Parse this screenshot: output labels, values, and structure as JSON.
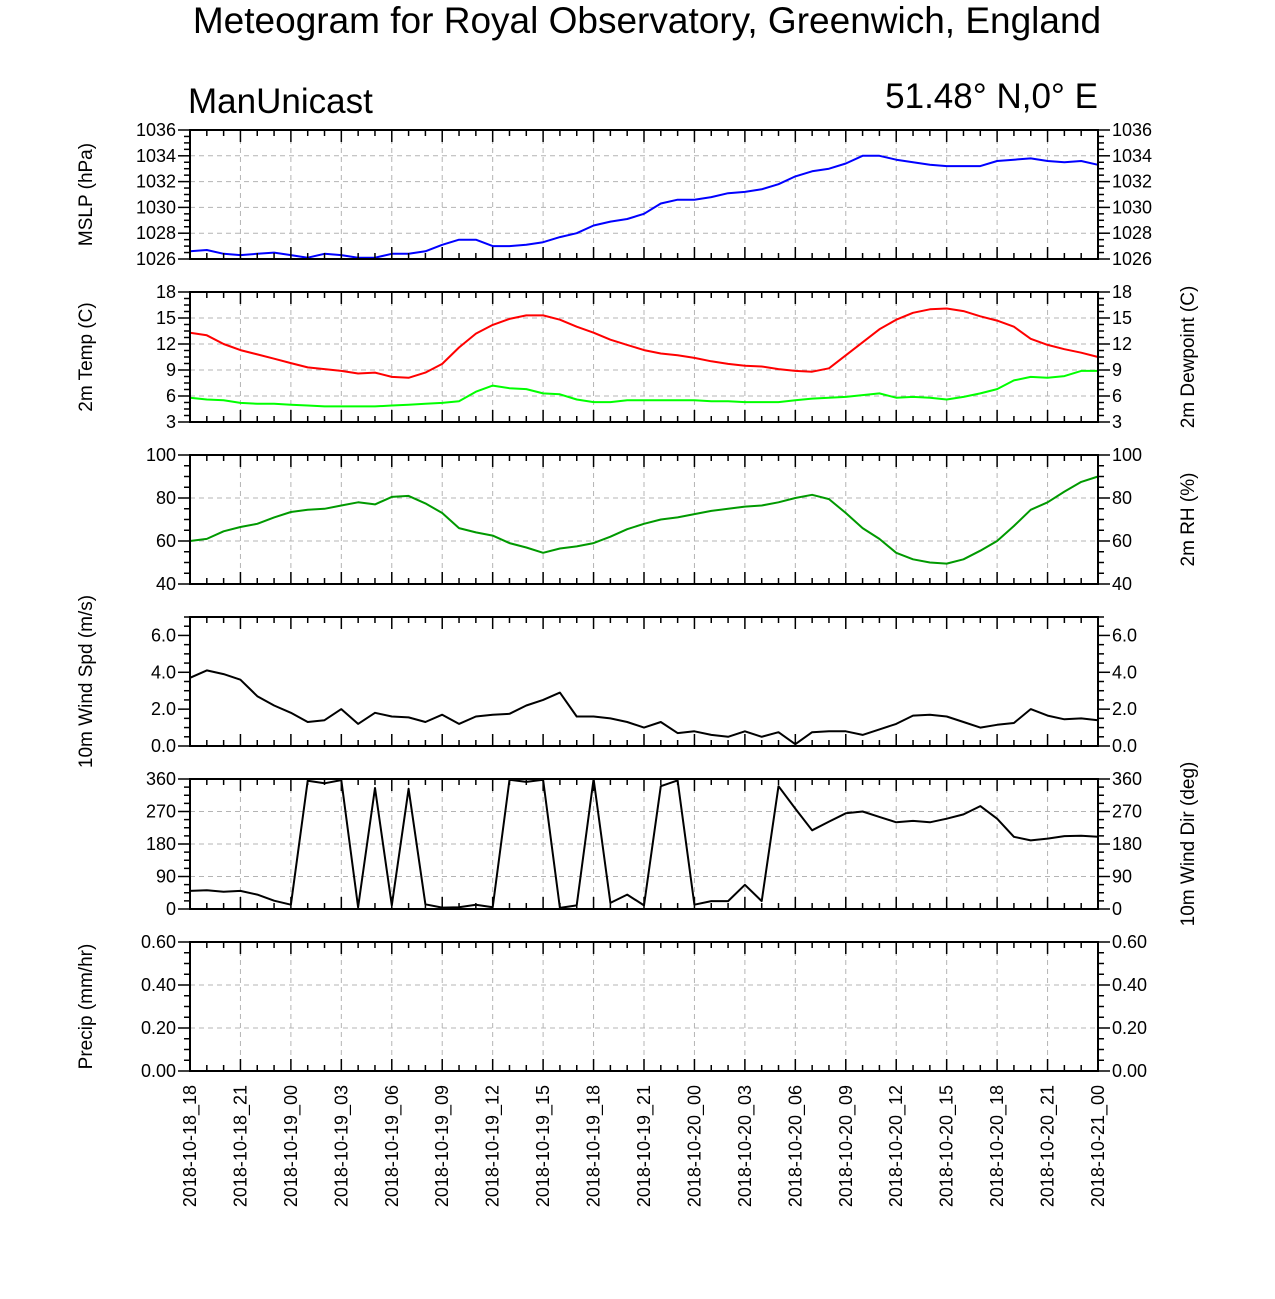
{
  "title": "Meteogram for Royal Observatory, Greenwich, England",
  "model_label": "ManUnicast",
  "location_label": "51.48° N,0° E",
  "x_tick_labels": [
    "2018-10-18_18",
    "2018-10-18_21",
    "2018-10-19_00",
    "2018-10-19_03",
    "2018-10-19_06",
    "2018-10-19_09",
    "2018-10-19_12",
    "2018-10-19_15",
    "2018-10-19_18",
    "2018-10-19_21",
    "2018-10-20_00",
    "2018-10-20_03",
    "2018-10-20_06",
    "2018-10-20_09",
    "2018-10-20_12",
    "2018-10-20_15",
    "2018-10-20_18",
    "2018-10-20_21",
    "2018-10-21_00"
  ],
  "chart_data": [
    {
      "type": "line",
      "ylabel": "MSLP (hPa)",
      "ylim": [
        1026,
        1036
      ],
      "yticks": [
        "1026",
        "1028",
        "1030",
        "1032",
        "1034",
        "1036"
      ],
      "grid": true,
      "series": [
        {
          "color": "#0000ff",
          "values": [
            1026.6,
            1026.7,
            1026.4,
            1026.3,
            1026.4,
            1026.5,
            1026.3,
            1026.1,
            1026.4,
            1026.3,
            1026.1,
            1026.1,
            1026.4,
            1026.4,
            1026.6,
            1027.1,
            1027.5,
            1027.5,
            1027.0,
            1027.0,
            1027.1,
            1027.3,
            1027.7,
            1028.0,
            1028.6,
            1028.9,
            1029.1,
            1029.5,
            1030.3,
            1030.6,
            1030.6,
            1030.8,
            1031.1,
            1031.2,
            1031.4,
            1031.8,
            1032.4,
            1032.8,
            1033.0,
            1033.4,
            1034.0,
            1034.0,
            1033.7,
            1033.5,
            1033.3,
            1033.2,
            1033.2,
            1033.2,
            1033.6,
            1033.7,
            1033.8,
            1033.6,
            1033.5,
            1033.6,
            1033.3
          ]
        }
      ]
    },
    {
      "type": "line",
      "ylabel": "2m Temp (C)",
      "ylabel_right": "2m Dewpoint (C)",
      "ylim": [
        3,
        18
      ],
      "yticks": [
        "3",
        "6",
        "9",
        "12",
        "15",
        "18"
      ],
      "grid": true,
      "series": [
        {
          "color": "#ff0000",
          "values": [
            13.3,
            13.0,
            12.0,
            11.3,
            10.8,
            10.3,
            9.8,
            9.3,
            9.1,
            8.9,
            8.6,
            8.7,
            8.2,
            8.1,
            8.7,
            9.7,
            11.6,
            13.2,
            14.2,
            14.9,
            15.3,
            15.3,
            14.8,
            14.0,
            13.3,
            12.5,
            11.9,
            11.3,
            10.9,
            10.7,
            10.4,
            10.0,
            9.7,
            9.5,
            9.4,
            9.1,
            8.9,
            8.8,
            9.2,
            10.7,
            12.2,
            13.7,
            14.8,
            15.6,
            16.0,
            16.1,
            15.8,
            15.2,
            14.7,
            14.0,
            12.6,
            11.9,
            11.4,
            11.0,
            10.5
          ]
        },
        {
          "color": "#00ff00",
          "values": [
            5.8,
            5.6,
            5.5,
            5.2,
            5.1,
            5.1,
            5.0,
            4.9,
            4.8,
            4.8,
            4.8,
            4.8,
            4.9,
            5.0,
            5.1,
            5.2,
            5.4,
            6.5,
            7.2,
            6.9,
            6.8,
            6.3,
            6.2,
            5.6,
            5.3,
            5.3,
            5.5,
            5.5,
            5.5,
            5.5,
            5.5,
            5.4,
            5.4,
            5.3,
            5.3,
            5.3,
            5.5,
            5.7,
            5.8,
            5.9,
            6.1,
            6.3,
            5.8,
            5.9,
            5.8,
            5.6,
            5.9,
            6.3,
            6.8,
            7.8,
            8.2,
            8.1,
            8.3,
            8.9,
            8.9
          ]
        }
      ]
    },
    {
      "type": "line",
      "ylabel": "",
      "ylabel_right": "2m RH (%)",
      "ylim": [
        40,
        100
      ],
      "yticks": [
        "40",
        "60",
        "80",
        "100"
      ],
      "grid": true,
      "series": [
        {
          "color": "#009900",
          "values": [
            60,
            61,
            64.5,
            66.5,
            68,
            71,
            73.5,
            74.5,
            75,
            76.5,
            78,
            77,
            80.5,
            81,
            77.5,
            73,
            66,
            64,
            62.5,
            59,
            57,
            54.5,
            56.5,
            57.5,
            59,
            62,
            65.5,
            68,
            70,
            71,
            72.5,
            74,
            75,
            76,
            76.5,
            78,
            80,
            81.5,
            79.5,
            73,
            66,
            61,
            54.5,
            51.5,
            50,
            49.5,
            51.5,
            55.5,
            60,
            67,
            74.5,
            78,
            83,
            87.5,
            90
          ]
        }
      ]
    },
    {
      "type": "line",
      "ylabel": "10m Wind Spd (m/s)",
      "ylim": [
        0,
        7
      ],
      "yticks": [
        "0.0",
        "2.0",
        "4.0",
        "6.0"
      ],
      "grid": false,
      "series": [
        {
          "color": "#000000",
          "values": [
            3.7,
            4.1,
            3.9,
            3.6,
            2.7,
            2.2,
            1.8,
            1.3,
            1.4,
            2.0,
            1.2,
            1.8,
            1.6,
            1.55,
            1.3,
            1.7,
            1.2,
            1.6,
            1.7,
            1.75,
            2.2,
            2.5,
            2.9,
            1.6,
            1.6,
            1.5,
            1.3,
            1.0,
            1.3,
            0.7,
            0.8,
            0.6,
            0.5,
            0.8,
            0.5,
            0.75,
            0.1,
            0.75,
            0.8,
            0.8,
            0.6,
            0.9,
            1.2,
            1.65,
            1.7,
            1.6,
            1.3,
            1.0,
            1.15,
            1.25,
            2.0,
            1.65,
            1.45,
            1.5,
            1.4
          ]
        }
      ]
    },
    {
      "type": "line",
      "ylabel": "",
      "ylabel_right": "10m Wind Dir (deg)",
      "ylim": [
        0,
        360
      ],
      "yticks": [
        "0",
        "90",
        "180",
        "270",
        "360"
      ],
      "grid": true,
      "series": [
        {
          "color": "#000000",
          "values": [
            50,
            52,
            48,
            50,
            40,
            23,
            12,
            355,
            348,
            357,
            5,
            335,
            10,
            333,
            13,
            4,
            5,
            12,
            5,
            358,
            352,
            358,
            3,
            10,
            360,
            17,
            40,
            10,
            340,
            356,
            12,
            22,
            22,
            67,
            22,
            340,
            278,
            218,
            242,
            265,
            270,
            255,
            240,
            244,
            240,
            250,
            262,
            285,
            250,
            200,
            190,
            195,
            202,
            203,
            200
          ]
        }
      ]
    },
    {
      "type": "line",
      "ylabel": "Precip (mm/hr)",
      "ylim": [
        0,
        0.6
      ],
      "yticks": [
        "0.00",
        "0.20",
        "0.40",
        "0.60"
      ],
      "grid": true,
      "series": []
    }
  ]
}
